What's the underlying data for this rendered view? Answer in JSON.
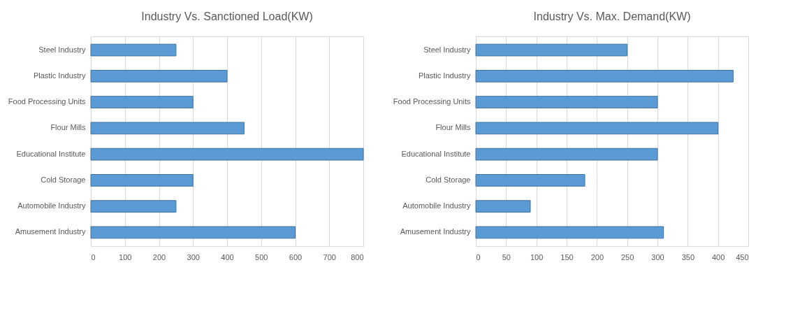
{
  "chart_data": [
    {
      "type": "bar",
      "orientation": "horizontal",
      "title": "Industry Vs. Sanctioned Load(KW)",
      "categories": [
        "Steel Industry",
        "Plastic Industry",
        "Food Processing Units",
        "Flour Mills",
        "Educational Institute",
        "Cold Storage",
        "Automobile Industry",
        "Amusement Industry"
      ],
      "values": [
        250,
        400,
        300,
        450,
        800,
        300,
        250,
        600
      ],
      "color": "#5b9bd5",
      "xlim": [
        0,
        800
      ],
      "xticks": [
        0,
        100,
        200,
        300,
        400,
        500,
        600,
        700,
        800
      ],
      "grid": "x"
    },
    {
      "type": "bar",
      "orientation": "horizontal",
      "title": "Industry Vs. Max. Demand(KW)",
      "categories": [
        "Steel Industry",
        "Plastic Industry",
        "Food Processing Units",
        "Flour Mills",
        "Educational Institute",
        "Cold Storage",
        "Automobile Industry",
        "Amusement Industry"
      ],
      "values": [
        250,
        425,
        300,
        400,
        300,
        180,
        90,
        310
      ],
      "color": "#5b9bd5",
      "xlim": [
        0,
        450
      ],
      "xticks": [
        0,
        50,
        100,
        150,
        200,
        250,
        300,
        350,
        400,
        450
      ],
      "grid": "x"
    }
  ]
}
